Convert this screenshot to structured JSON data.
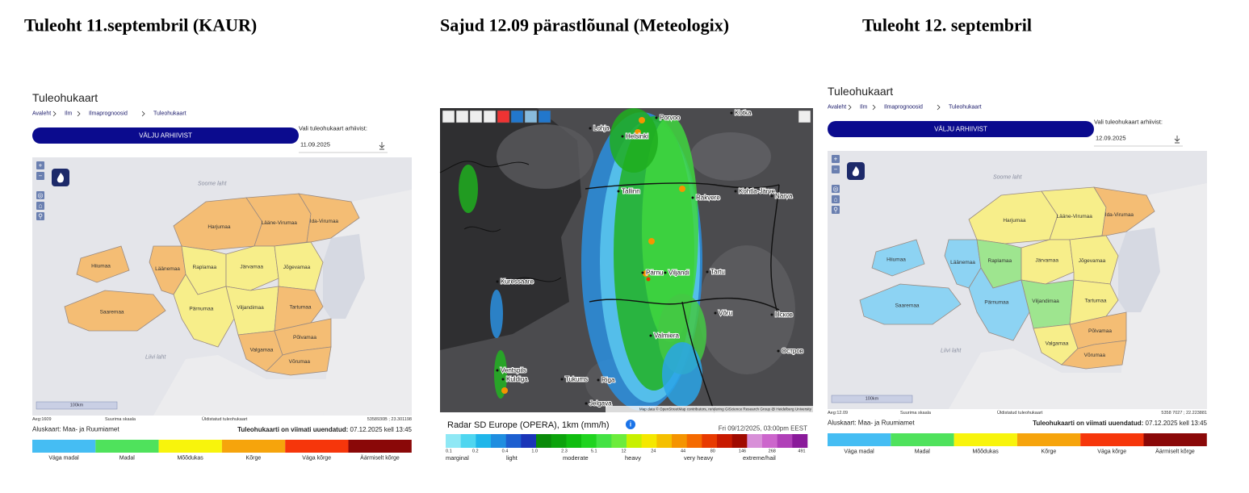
{
  "titles": [
    "Tuleoht 11.septembril (KAUR)",
    "Sajud 12.09 pärastlõunal (Meteologix)",
    "Tuleoht 12. septembril"
  ],
  "fire_maps": [
    {
      "heading": "Tuleohukaart",
      "breadcrumb": [
        "Avaleht",
        "Ilm",
        "Ilmaprognoosid",
        "Tuleohukaart"
      ],
      "button": "VÄLJU ARHIIVIST",
      "archive_label": "Vali tuleohukaart arhiivist:",
      "date": "11.09.2025",
      "water_labels": [
        "Soome laht",
        "Liivi laht"
      ],
      "regions": [
        {
          "name": "Harjumaa",
          "color": "#f4bd74"
        },
        {
          "name": "Lääne-Virumaa",
          "color": "#f4bd74"
        },
        {
          "name": "Ida-Virumaa",
          "color": "#f4bd74"
        },
        {
          "name": "Läänemaa",
          "color": "#f4bd74"
        },
        {
          "name": "Raplamaa",
          "color": "#f7ee8a"
        },
        {
          "name": "Järvamaa",
          "color": "#f7ee8a"
        },
        {
          "name": "Jõgevamaa",
          "color": "#f7ee8a"
        },
        {
          "name": "Pärnumaa",
          "color": "#f7ee8a"
        },
        {
          "name": "Viljandimaa",
          "color": "#f7ee8a"
        },
        {
          "name": "Tartumaa",
          "color": "#f4bd74"
        },
        {
          "name": "Valgamaa",
          "color": "#f4bd74"
        },
        {
          "name": "Põlvamaa",
          "color": "#f4bd74"
        },
        {
          "name": "Võrumaa",
          "color": "#f4bd74"
        },
        {
          "name": "Hiiumaa",
          "color": "#f4bd74"
        },
        {
          "name": "Saaremaa",
          "color": "#f4bd74"
        }
      ],
      "scale": "100km",
      "footer": {
        "time": "Aeg:1609",
        "scale_note": "Suurima skaala",
        "layer": "Üldistatud tuleohukaart",
        "coords": "5358930B ; 23.301198",
        "basemap": "Aluskaart: Maa- ja Ruumiamet",
        "updated": "Tuleohukaarti on viimati uuendatud:",
        "updated_at": " 07.12.2025 kell 13:45"
      },
      "legend": [
        {
          "label": "Väga madal",
          "color": "#45bdf3"
        },
        {
          "label": "Madal",
          "color": "#4fe25c"
        },
        {
          "label": "Mõõdukas",
          "color": "#f8f40c"
        },
        {
          "label": "Kõrge",
          "color": "#f6a40c"
        },
        {
          "label": "Väga kõrge",
          "color": "#f6360b"
        },
        {
          "label": "Äärmiselt kõrge",
          "color": "#8a0808"
        }
      ]
    },
    {
      "heading": "Tuleohukaart",
      "breadcrumb": [
        "Avaleht",
        "Ilm",
        "Ilmaprognoosid",
        "Tuleohukaart"
      ],
      "button": "VÄLJU ARHIIVIST",
      "archive_label": "Vali tuleohukaart arhiivist:",
      "date": "12.09.2025",
      "water_labels": [
        "Soome laht",
        "Liivi laht"
      ],
      "regions": [
        {
          "name": "Harjumaa",
          "color": "#f7ee8a"
        },
        {
          "name": "Lääne-Virumaa",
          "color": "#f7ee8a"
        },
        {
          "name": "Ida-Virumaa",
          "color": "#f4bd74"
        },
        {
          "name": "Läänemaa",
          "color": "#8dd3f3"
        },
        {
          "name": "Raplamaa",
          "color": "#9ee58f"
        },
        {
          "name": "Järvamaa",
          "color": "#f7ee8a"
        },
        {
          "name": "Jõgevamaa",
          "color": "#f7ee8a"
        },
        {
          "name": "Pärnumaa",
          "color": "#8dd3f3"
        },
        {
          "name": "Viljandimaa",
          "color": "#9ee58f"
        },
        {
          "name": "Tartumaa",
          "color": "#f7ee8a"
        },
        {
          "name": "Valgamaa",
          "color": "#f7ee8a"
        },
        {
          "name": "Põlvamaa",
          "color": "#f4bd74"
        },
        {
          "name": "Võrumaa",
          "color": "#f4bd74"
        },
        {
          "name": "Hiiumaa",
          "color": "#8dd3f3"
        },
        {
          "name": "Saaremaa",
          "color": "#8dd3f3"
        }
      ],
      "scale": "100km",
      "footer": {
        "time": "Aeg:12.09",
        "scale_note": "Suurima skaala",
        "layer": "Üldistatud tuleohukaart",
        "coords": "5358 7027 ; 22.223881",
        "basemap": "Aluskaart: Maa- ja Ruumiamet",
        "updated": "Tuleohukaarti on viimati uuendatud:",
        "updated_at": " 07.12.2025 kell 13:45"
      },
      "legend": [
        {
          "label": "Väga madal",
          "color": "#45bdf3"
        },
        {
          "label": "Madal",
          "color": "#4fe25c"
        },
        {
          "label": "Mõõdukas",
          "color": "#f8f40c"
        },
        {
          "label": "Kõrge",
          "color": "#f6a40c"
        },
        {
          "label": "Väga kõrge",
          "color": "#f6360b"
        },
        {
          "label": "Äärmiselt kõrge",
          "color": "#8a0808"
        }
      ]
    }
  ],
  "radar": {
    "cities": [
      "Porvoo",
      "Kotka",
      "Lohja",
      "Helsinki",
      "Tallinn",
      "Rakvere",
      "Kohtla-Järve",
      "Narva",
      "Kuressaare",
      "Pärnu",
      "Viljandi",
      "Tartu",
      "Võru",
      "Псков",
      "Valmiera",
      "Остров",
      "Ventspils",
      "Kuldiga",
      "Tukums",
      "Riga",
      "Jelgava"
    ],
    "credit": "Map data © OpenStreetMap contributors, rendering GIScience Research Group @ Heidelberg University",
    "legend_title": "Radar SD Europe (OPERA), 1km (mm/h)",
    "time": "Fri 09/12/2025, 03:00pm EEST",
    "scale_ticks": [
      "0.1",
      "0.2",
      "0.4",
      "1.0",
      "2.3",
      "5.1",
      "12",
      "24",
      "44",
      "80",
      "146",
      "268",
      "491"
    ],
    "intensity_labels": [
      "marginal",
      "light",
      "moderate",
      "heavy",
      "very heavy",
      "extreme/hail"
    ],
    "scale_colors": [
      "#8fe8f5",
      "#4fd6f0",
      "#1fb6ea",
      "#1f8ee0",
      "#1d5fd0",
      "#1a35b8",
      "#0a8a0a",
      "#0ca30c",
      "#10bd10",
      "#20d420",
      "#44e244",
      "#6cec3c",
      "#c8f000",
      "#f5e800",
      "#f5c000",
      "#f59400",
      "#f56a00",
      "#e83a00",
      "#c81a00",
      "#a00a00",
      "#d890d8",
      "#cc66cc",
      "#b040b8",
      "#8a1a9a"
    ]
  }
}
